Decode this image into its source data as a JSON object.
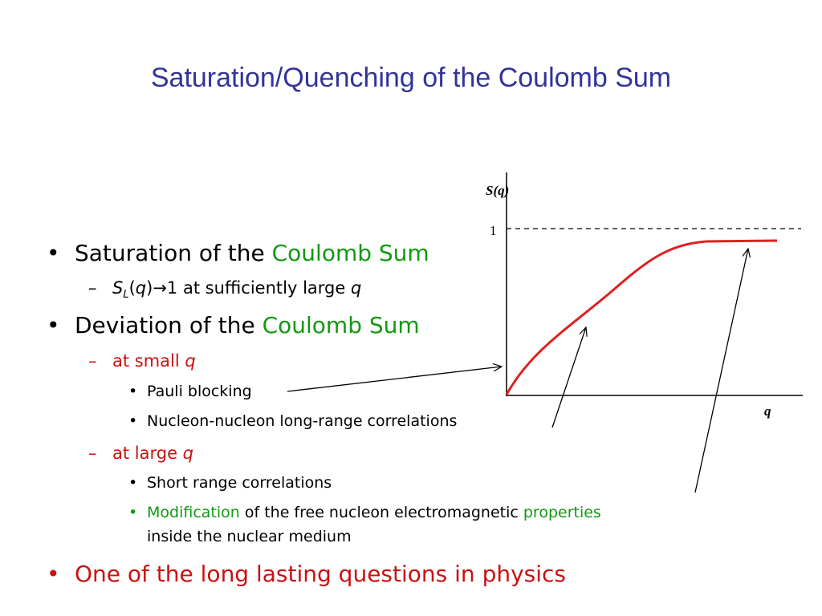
{
  "title": "Saturation/Quenching of the Coulomb Sum",
  "bullets": [
    {
      "parts": [
        "Saturation of the ",
        "Coulomb Sum"
      ]
    },
    {
      "parts": [
        "S",
        "L",
        "(",
        "q",
        ")→1 at sufficiently large ",
        "q"
      ]
    },
    {
      "parts": [
        "Deviation of the ",
        "Coulomb Sum"
      ]
    },
    {
      "parts": [
        "at small ",
        "q"
      ]
    },
    {
      "parts": [
        "Pauli blocking"
      ]
    },
    {
      "parts": [
        "Nucleon-nucleon long-range correlations"
      ]
    },
    {
      "parts": [
        "at large ",
        "q"
      ]
    },
    {
      "parts": [
        "Short range correlations"
      ]
    },
    {
      "parts": [
        "Modification",
        " of the free nucleon electromagnetic ",
        "properties",
        "inside the nuclear medium"
      ]
    },
    {
      "parts": [
        "One of the long lasting questions in physics"
      ]
    }
  ],
  "figure": {
    "y_label": "S(q)",
    "x_label": "q",
    "reference_label": "1"
  }
}
